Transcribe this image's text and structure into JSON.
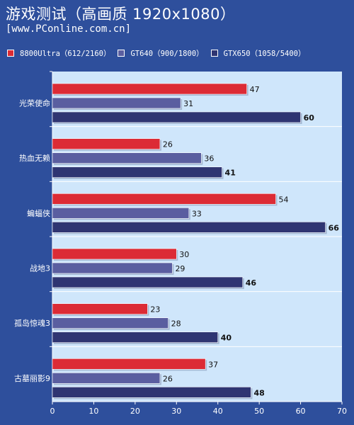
{
  "header": {
    "title": "游戏测试（高画质 1920x1080）",
    "subtitle": "[www.PConline.com.cn]"
  },
  "colors": {
    "background": "#2e4f9c",
    "plot_background": "#cfe6fb",
    "text": "#ffffff",
    "series": [
      "#dc2b35",
      "#5a5ea0",
      "#2f3572"
    ]
  },
  "chart_data": {
    "type": "bar",
    "orientation": "horizontal",
    "categories": [
      "光荣使命",
      "热血无赖",
      "蝙蝠侠",
      "战地3",
      "孤岛惊魂3",
      "古墓丽影9"
    ],
    "series": [
      {
        "name": "8800Ultra（612/2160）",
        "values": [
          47,
          26,
          54,
          30,
          23,
          37
        ]
      },
      {
        "name": "GT640（900/1800）",
        "values": [
          31,
          36,
          33,
          29,
          28,
          26
        ]
      },
      {
        "name": "GTX650（1058/5400）",
        "values": [
          60,
          41,
          66,
          46,
          40,
          48
        ]
      }
    ],
    "xlim": [
      0,
      70
    ],
    "xticks": [
      0,
      10,
      20,
      30,
      40,
      50,
      60,
      70
    ],
    "legend_position": "top",
    "grid": false
  }
}
